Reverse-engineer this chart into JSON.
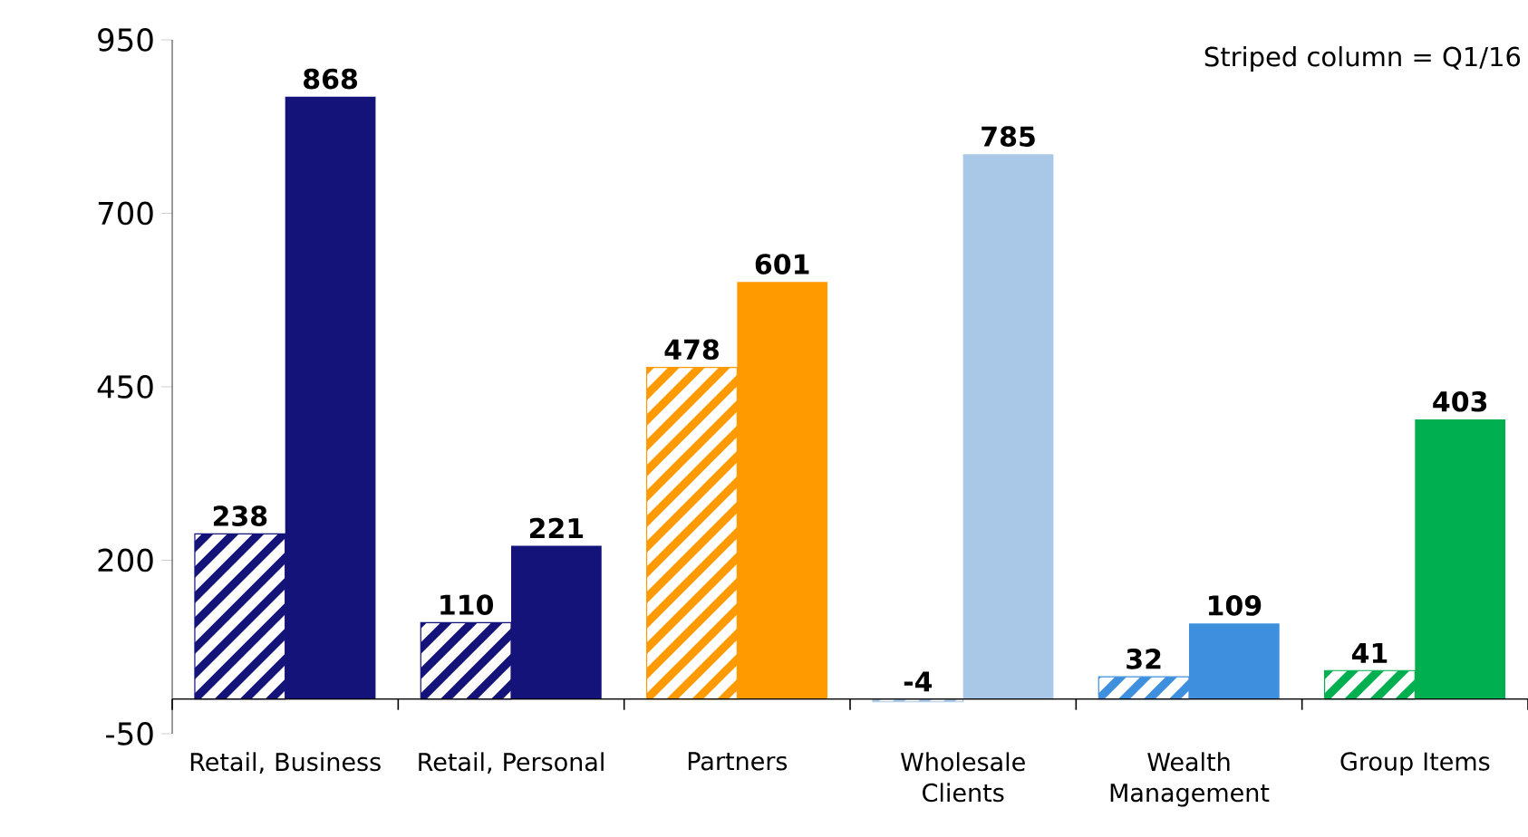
{
  "chart_data": {
    "type": "bar",
    "categories": [
      "Retail, Business",
      "Retail, Personal",
      "Partners",
      "Wholesale Clients",
      "Wealth Management",
      "Group Items"
    ],
    "series": [
      {
        "colors": [
          "#13137a",
          "#13137a",
          "#ff9a00",
          "#a9c8e8",
          "#3f8fdf",
          "#00b050"
        ],
        "values": [
          238,
          110,
          478,
          -4,
          32,
          41
        ]
      },
      {
        "colors": [
          "#13137a",
          "#13137a",
          "#ff9a00",
          "#a9c8e8",
          "#3f8fdf",
          "#00b050"
        ],
        "values": [
          868,
          221,
          601,
          785,
          109,
          403
        ]
      }
    ],
    "ylim": [
      -50,
      950
    ],
    "yticks": [
      -50,
      200,
      450,
      700,
      950
    ],
    "data_labels": true,
    "grid": false,
    "annotations": [
      "Striped column = Q1/16"
    ]
  }
}
